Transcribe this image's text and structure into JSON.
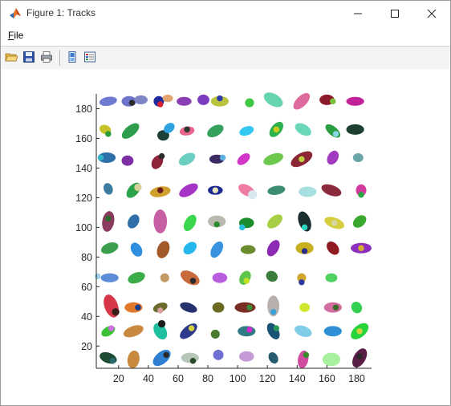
{
  "window": {
    "title": "Figure 1: Tracks",
    "icons": {
      "app": "matlab-icon",
      "minimize": "minimize-icon",
      "maximize": "maximize-icon",
      "close": "close-icon"
    }
  },
  "menu": {
    "file_label": "File"
  },
  "toolbar": {
    "items": [
      {
        "name": "open-file-button",
        "icon": "open-folder-icon"
      },
      {
        "name": "save-button",
        "icon": "save-icon"
      },
      {
        "name": "print-button",
        "icon": "print-icon"
      },
      {
        "name": "link-plot-button",
        "icon": "link-plot-icon"
      },
      {
        "name": "insert-legend-button",
        "icon": "legend-icon"
      }
    ]
  },
  "chart_data": {
    "type": "scatter",
    "title": "",
    "xlabel": "",
    "ylabel": "",
    "xlim": [
      5,
      190
    ],
    "ylim": [
      5,
      190
    ],
    "xticks": [
      20,
      40,
      60,
      80,
      100,
      120,
      140,
      160,
      180
    ],
    "yticks": [
      20,
      40,
      60,
      80,
      100,
      120,
      140,
      160,
      180
    ],
    "xtick_labels": [
      "20",
      "40",
      "60",
      "80",
      "100",
      "120",
      "140",
      "160",
      "180"
    ],
    "ytick_labels": [
      "20",
      "40",
      "60",
      "80",
      "100",
      "120",
      "140",
      "160",
      "180"
    ],
    "grid": false,
    "legend": "none",
    "note": "Each blob is a tracked object drawn as a filled ellipse",
    "tracks": [
      {
        "x": 13,
        "y": 185,
        "rx": 6,
        "ry": 3,
        "ang": 10,
        "c": "#6f7bd1"
      },
      {
        "x": 27,
        "y": 185,
        "rx": 5,
        "ry": 3.5,
        "ang": 0,
        "c": "#6b74c9"
      },
      {
        "x": 35,
        "y": 186,
        "rx": 4.5,
        "ry": 3,
        "ang": 0,
        "c": "#7f86c7"
      },
      {
        "x": 47,
        "y": 185,
        "rx": 3.5,
        "ry": 3.5,
        "ang": 0,
        "c": "#1f2b9c"
      },
      {
        "x": 53,
        "y": 187,
        "rx": 3.5,
        "ry": 2.5,
        "ang": 0,
        "c": "#e2a36e"
      },
      {
        "x": 64,
        "y": 185,
        "rx": 5,
        "ry": 3,
        "ang": 0,
        "c": "#8b3fb4"
      },
      {
        "x": 77,
        "y": 186,
        "rx": 4,
        "ry": 3.5,
        "ang": 0,
        "c": "#7c3bbe"
      },
      {
        "x": 88,
        "y": 185,
        "rx": 6,
        "ry": 3.5,
        "ang": 0,
        "c": "#b9c33e"
      },
      {
        "x": 108,
        "y": 184,
        "rx": 3,
        "ry": 3,
        "ang": 0,
        "c": "#41c742"
      },
      {
        "x": 124,
        "y": 186,
        "rx": 7,
        "ry": 4,
        "ang": -30,
        "c": "#66d3b1"
      },
      {
        "x": 143,
        "y": 185,
        "rx": 7,
        "ry": 3.5,
        "ang": 45,
        "c": "#df6a9e"
      },
      {
        "x": 160,
        "y": 186,
        "rx": 5,
        "ry": 3.5,
        "ang": 0,
        "c": "#8d1a2a"
      },
      {
        "x": 179,
        "y": 185,
        "rx": 6,
        "ry": 3,
        "ang": 0,
        "c": "#c3239a"
      },
      {
        "x": 11,
        "y": 166,
        "rx": 4,
        "ry": 3,
        "ang": -20,
        "c": "#c7c12a"
      },
      {
        "x": 28,
        "y": 165,
        "rx": 7,
        "ry": 3.5,
        "ang": 40,
        "c": "#2f9e4c"
      },
      {
        "x": 50,
        "y": 162,
        "rx": 4,
        "ry": 3.5,
        "ang": 0,
        "c": "#1c3f3a"
      },
      {
        "x": 54,
        "y": 167,
        "rx": 4,
        "ry": 3,
        "ang": 40,
        "c": "#2fa3e0"
      },
      {
        "x": 66,
        "y": 165,
        "rx": 5,
        "ry": 3,
        "ang": 10,
        "c": "#e7628d"
      },
      {
        "x": 85,
        "y": 165,
        "rx": 6,
        "ry": 3.5,
        "ang": 30,
        "c": "#36a05d"
      },
      {
        "x": 106,
        "y": 165,
        "rx": 5,
        "ry": 3,
        "ang": 20,
        "c": "#34c7f2"
      },
      {
        "x": 126,
        "y": 166,
        "rx": 6,
        "ry": 3.5,
        "ang": 50,
        "c": "#2fb24e"
      },
      {
        "x": 144,
        "y": 166,
        "rx": 6,
        "ry": 3.5,
        "ang": -30,
        "c": "#6bd6b8"
      },
      {
        "x": 164,
        "y": 165,
        "rx": 6,
        "ry": 3,
        "ang": -40,
        "c": "#2a9e43"
      },
      {
        "x": 179,
        "y": 166,
        "rx": 6,
        "ry": 3.5,
        "ang": 0,
        "c": "#1d4030"
      },
      {
        "x": 12,
        "y": 147,
        "rx": 6,
        "ry": 3.5,
        "ang": 0,
        "c": "#2d6fa8"
      },
      {
        "x": 26,
        "y": 145,
        "rx": 4,
        "ry": 3.5,
        "ang": 0,
        "c": "#7b2fa3"
      },
      {
        "x": 46,
        "y": 144,
        "rx": 5,
        "ry": 3.5,
        "ang": 60,
        "c": "#8e2438"
      },
      {
        "x": 66,
        "y": 146,
        "rx": 6,
        "ry": 3.5,
        "ang": 30,
        "c": "#6ccfc2"
      },
      {
        "x": 86,
        "y": 146,
        "rx": 5,
        "ry": 3,
        "ang": 0,
        "c": "#3c2a63"
      },
      {
        "x": 104,
        "y": 146,
        "rx": 5,
        "ry": 3,
        "ang": 40,
        "c": "#d437c7"
      },
      {
        "x": 124,
        "y": 146,
        "rx": 7,
        "ry": 3.5,
        "ang": 20,
        "c": "#6cc94e"
      },
      {
        "x": 143,
        "y": 146,
        "rx": 8,
        "ry": 4,
        "ang": 30,
        "c": "#8b2636"
      },
      {
        "x": 164,
        "y": 147,
        "rx": 5,
        "ry": 3.5,
        "ang": 60,
        "c": "#a03bbf"
      },
      {
        "x": 181,
        "y": 147,
        "rx": 3.5,
        "ry": 3,
        "ang": 0,
        "c": "#6aa5a8"
      },
      {
        "x": 13,
        "y": 126,
        "rx": 4,
        "ry": 3,
        "ang": -70,
        "c": "#3d7c9e"
      },
      {
        "x": 30,
        "y": 125,
        "rx": 6,
        "ry": 3.5,
        "ang": 50,
        "c": "#2aa34a"
      },
      {
        "x": 48,
        "y": 124,
        "rx": 7,
        "ry": 3.5,
        "ang": 10,
        "c": "#d0a02e"
      },
      {
        "x": 67,
        "y": 125,
        "rx": 7,
        "ry": 3.5,
        "ang": 30,
        "c": "#a634c7"
      },
      {
        "x": 85,
        "y": 125,
        "rx": 5,
        "ry": 3,
        "ang": 0,
        "c": "#1d2a8f"
      },
      {
        "x": 106,
        "y": 125,
        "rx": 6,
        "ry": 3.5,
        "ang": -30,
        "c": "#ee7ba0"
      },
      {
        "x": 126,
        "y": 125,
        "rx": 6,
        "ry": 3,
        "ang": 10,
        "c": "#3b8e6f"
      },
      {
        "x": 147,
        "y": 124,
        "rx": 6,
        "ry": 3.5,
        "ang": 0,
        "c": "#a8e0e0"
      },
      {
        "x": 163,
        "y": 125,
        "rx": 7,
        "ry": 3.5,
        "ang": -20,
        "c": "#8c2a3d"
      },
      {
        "x": 183,
        "y": 125,
        "rx": 3.5,
        "ry": 4,
        "ang": 0,
        "c": "#d23c9f"
      },
      {
        "x": 13,
        "y": 104,
        "rx": 7,
        "ry": 4,
        "ang": 80,
        "c": "#8a3b5e"
      },
      {
        "x": 30,
        "y": 104,
        "rx": 5,
        "ry": 3.5,
        "ang": 60,
        "c": "#2f6ea8"
      },
      {
        "x": 48,
        "y": 104,
        "rx": 8,
        "ry": 4.5,
        "ang": 90,
        "c": "#c75fa3"
      },
      {
        "x": 68,
        "y": 103,
        "rx": 6,
        "ry": 3.5,
        "ang": 60,
        "c": "#3cd64d"
      },
      {
        "x": 86,
        "y": 104,
        "rx": 6,
        "ry": 4,
        "ang": 0,
        "c": "#b9b9b0"
      },
      {
        "x": 106,
        "y": 103,
        "rx": 5,
        "ry": 3.5,
        "ang": 0,
        "c": "#1a8e2e"
      },
      {
        "x": 125,
        "y": 104,
        "rx": 6,
        "ry": 3.5,
        "ang": 40,
        "c": "#a8cf45"
      },
      {
        "x": 145,
        "y": 104,
        "rx": 7,
        "ry": 4,
        "ang": -70,
        "c": "#1d2e2e"
      },
      {
        "x": 165,
        "y": 103,
        "rx": 7,
        "ry": 3.5,
        "ang": -20,
        "c": "#d6ce3f"
      },
      {
        "x": 182,
        "y": 104,
        "rx": 5,
        "ry": 3.5,
        "ang": 40,
        "c": "#3aa82e"
      },
      {
        "x": 14,
        "y": 86,
        "rx": 6,
        "ry": 3.5,
        "ang": 20,
        "c": "#3c9f4d"
      },
      {
        "x": 32,
        "y": 85,
        "rx": 5,
        "ry": 3.5,
        "ang": -60,
        "c": "#2e8fe0"
      },
      {
        "x": 50,
        "y": 85,
        "rx": 6,
        "ry": 4,
        "ang": 70,
        "c": "#a35a2a"
      },
      {
        "x": 68,
        "y": 86,
        "rx": 5,
        "ry": 3.5,
        "ang": 40,
        "c": "#27b6ec"
      },
      {
        "x": 86,
        "y": 85,
        "rx": 6,
        "ry": 3.5,
        "ang": 60,
        "c": "#3a93e0"
      },
      {
        "x": 107,
        "y": 85,
        "rx": 5,
        "ry": 3,
        "ang": 0,
        "c": "#6b8c2e"
      },
      {
        "x": 124,
        "y": 86,
        "rx": 6,
        "ry": 3.5,
        "ang": 60,
        "c": "#8c2ab6"
      },
      {
        "x": 145,
        "y": 86,
        "rx": 6,
        "ry": 4,
        "ang": 0,
        "c": "#c6b020"
      },
      {
        "x": 164,
        "y": 86,
        "rx": 5,
        "ry": 3.5,
        "ang": -50,
        "c": "#8e1b22"
      },
      {
        "x": 183,
        "y": 86,
        "rx": 7,
        "ry": 3.5,
        "ang": 0,
        "c": "#8c30bd"
      },
      {
        "x": 14,
        "y": 66,
        "rx": 6,
        "ry": 3,
        "ang": 0,
        "c": "#5d8cd6"
      },
      {
        "x": 32,
        "y": 66,
        "rx": 6,
        "ry": 3.5,
        "ang": 20,
        "c": "#3cad48"
      },
      {
        "x": 51,
        "y": 66,
        "rx": 3,
        "ry": 3,
        "ang": 0,
        "c": "#c49a67"
      },
      {
        "x": 68,
        "y": 66,
        "rx": 7,
        "ry": 4,
        "ang": -30,
        "c": "#c86a3b"
      },
      {
        "x": 88,
        "y": 66,
        "rx": 5,
        "ry": 3.5,
        "ang": 0,
        "c": "#b65de0"
      },
      {
        "x": 105,
        "y": 66,
        "rx": 5,
        "ry": 3.5,
        "ang": 60,
        "c": "#5ec64c"
      },
      {
        "x": 123,
        "y": 67,
        "rx": 4,
        "ry": 3.5,
        "ang": -30,
        "c": "#3b7c3a"
      },
      {
        "x": 143,
        "y": 66,
        "rx": 3,
        "ry": 3,
        "ang": 0,
        "c": "#d4a531"
      },
      {
        "x": 163,
        "y": 66,
        "rx": 4,
        "ry": 3,
        "ang": 0,
        "c": "#51d161"
      },
      {
        "x": 15,
        "y": 47,
        "rx": 8,
        "ry": 4.5,
        "ang": -70,
        "c": "#d8374a"
      },
      {
        "x": 30,
        "y": 46,
        "rx": 6,
        "ry": 3.5,
        "ang": 0,
        "c": "#e2782a"
      },
      {
        "x": 48,
        "y": 46,
        "rx": 5,
        "ry": 3,
        "ang": 20,
        "c": "#6a6a2a"
      },
      {
        "x": 67,
        "y": 46,
        "rx": 6,
        "ry": 3,
        "ang": -20,
        "c": "#25326e"
      },
      {
        "x": 87,
        "y": 46,
        "rx": 4,
        "ry": 3.5,
        "ang": 0,
        "c": "#6b6a22"
      },
      {
        "x": 105,
        "y": 46,
        "rx": 7,
        "ry": 3.5,
        "ang": 0,
        "c": "#7a2d22"
      },
      {
        "x": 124,
        "y": 47,
        "rx": 7,
        "ry": 4,
        "ang": 90,
        "c": "#b8b0ac"
      },
      {
        "x": 145,
        "y": 46,
        "rx": 3.5,
        "ry": 3,
        "ang": 0,
        "c": "#d1e62f"
      },
      {
        "x": 164,
        "y": 46,
        "rx": 6,
        "ry": 3.5,
        "ang": 0,
        "c": "#d36ea0"
      },
      {
        "x": 180,
        "y": 46,
        "rx": 4,
        "ry": 3.5,
        "ang": -60,
        "c": "#35cf52"
      },
      {
        "x": 13,
        "y": 30,
        "rx": 5,
        "ry": 3,
        "ang": 30,
        "c": "#3cc236"
      },
      {
        "x": 30,
        "y": 30,
        "rx": 7,
        "ry": 3.5,
        "ang": 20,
        "c": "#c98a3f"
      },
      {
        "x": 48,
        "y": 30,
        "rx": 6,
        "ry": 4,
        "ang": -60,
        "c": "#1fbfa0"
      },
      {
        "x": 67,
        "y": 30,
        "rx": 7,
        "ry": 3.5,
        "ang": 40,
        "c": "#2d3a8c"
      },
      {
        "x": 85,
        "y": 28,
        "rx": 3,
        "ry": 3,
        "ang": 0,
        "c": "#4a7a2f"
      },
      {
        "x": 106,
        "y": 30,
        "rx": 6,
        "ry": 3.5,
        "ang": 0,
        "c": "#2f7c84"
      },
      {
        "x": 124,
        "y": 30,
        "rx": 6,
        "ry": 3.5,
        "ang": -60,
        "c": "#1a5474"
      },
      {
        "x": 144,
        "y": 30,
        "rx": 6,
        "ry": 3.5,
        "ang": -20,
        "c": "#7fcde6"
      },
      {
        "x": 164,
        "y": 30,
        "rx": 6,
        "ry": 3.5,
        "ang": 0,
        "c": "#2e8fd4"
      },
      {
        "x": 182,
        "y": 30,
        "rx": 7,
        "ry": 4,
        "ang": 40,
        "c": "#27d43c"
      },
      {
        "x": 13,
        "y": 12,
        "rx": 6,
        "ry": 3.5,
        "ang": -20,
        "c": "#1d4a33"
      },
      {
        "x": 30,
        "y": 11,
        "rx": 6,
        "ry": 4,
        "ang": 80,
        "c": "#c98a3f"
      },
      {
        "x": 49,
        "y": 12,
        "rx": 7,
        "ry": 4,
        "ang": 40,
        "c": "#2f7fd0"
      },
      {
        "x": 68,
        "y": 12,
        "rx": 6,
        "ry": 3.5,
        "ang": 0,
        "c": "#b7c6b8"
      },
      {
        "x": 87,
        "y": 14,
        "rx": 3.5,
        "ry": 3.5,
        "ang": 0,
        "c": "#6e6fd1"
      },
      {
        "x": 106,
        "y": 13,
        "rx": 5,
        "ry": 3.5,
        "ang": 0,
        "c": "#c49ad7"
      },
      {
        "x": 124,
        "y": 12,
        "rx": 4,
        "ry": 3,
        "ang": -60,
        "c": "#265a6e"
      },
      {
        "x": 144,
        "y": 11,
        "rx": 6,
        "ry": 3.5,
        "ang": 80,
        "c": "#d14ba1"
      },
      {
        "x": 163,
        "y": 11,
        "rx": 6,
        "ry": 4.5,
        "ang": 0,
        "c": "#a8f0a0"
      },
      {
        "x": 182,
        "y": 12,
        "rx": 7,
        "ry": 4,
        "ang": 60,
        "c": "#5a1d45"
      }
    ],
    "accents": [
      {
        "x": 48,
        "y": 183,
        "r": 2,
        "c": "#d62030"
      },
      {
        "x": 88,
        "y": 187,
        "r": 2,
        "c": "#2a3aa8"
      },
      {
        "x": 164,
        "y": 185,
        "r": 2,
        "c": "#7ac23a"
      },
      {
        "x": 29,
        "y": 184,
        "r": 2,
        "c": "#2b2b2b"
      },
      {
        "x": 13,
        "y": 163,
        "r": 2,
        "c": "#2a9a3a"
      },
      {
        "x": 66,
        "y": 166,
        "r": 2,
        "c": "#2b3b2b"
      },
      {
        "x": 126,
        "y": 166,
        "r": 2,
        "c": "#cccc20"
      },
      {
        "x": 166,
        "y": 163,
        "r": 2,
        "c": "#8ad6e6"
      },
      {
        "x": 8,
        "y": 147,
        "r": 2,
        "c": "#33b5c8"
      },
      {
        "x": 49,
        "y": 148,
        "r": 2,
        "c": "#2a2a2a"
      },
      {
        "x": 90,
        "y": 147,
        "r": 2,
        "c": "#5ab0e0"
      },
      {
        "x": 143,
        "y": 146,
        "r": 2,
        "c": "#c0d040"
      },
      {
        "x": 33,
        "y": 127,
        "r": 2.5,
        "c": "#d6d09a"
      },
      {
        "x": 48,
        "y": 125,
        "r": 2,
        "c": "#6b1b1b"
      },
      {
        "x": 110,
        "y": 122,
        "r": 3,
        "c": "#d8e8ee"
      },
      {
        "x": 85,
        "y": 125,
        "r": 2,
        "c": "#e8e2c0"
      },
      {
        "x": 183,
        "y": 122,
        "r": 2,
        "c": "#2aa640"
      },
      {
        "x": 13,
        "y": 106,
        "r": 2,
        "c": "#2b6b2b"
      },
      {
        "x": 86,
        "y": 102,
        "r": 2,
        "c": "#2b8a2b"
      },
      {
        "x": 103,
        "y": 100,
        "r": 2,
        "c": "#2ac0e0"
      },
      {
        "x": 145,
        "y": 100,
        "r": 2,
        "c": "#2ad6c0"
      },
      {
        "x": 165,
        "y": 103,
        "r": 2,
        "c": "#d6d6a0"
      },
      {
        "x": 145,
        "y": 84,
        "r": 2,
        "c": "#2b2b8a"
      },
      {
        "x": 183,
        "y": 86,
        "r": 2,
        "c": "#d6b030"
      },
      {
        "x": 6,
        "y": 67,
        "r": 2,
        "c": "#9fd0e8"
      },
      {
        "x": 70,
        "y": 64,
        "r": 2,
        "c": "#2b2b2b"
      },
      {
        "x": 106,
        "y": 64,
        "r": 2,
        "c": "#c0e020"
      },
      {
        "x": 143,
        "y": 63,
        "r": 2,
        "c": "#2a3a9a"
      },
      {
        "x": 18,
        "y": 43,
        "r": 2.5,
        "c": "#3a1d1d"
      },
      {
        "x": 33,
        "y": 46,
        "r": 2,
        "c": "#1a3a8a"
      },
      {
        "x": 48,
        "y": 44,
        "r": 2,
        "c": "#d8a0a0"
      },
      {
        "x": 108,
        "y": 46,
        "r": 2,
        "c": "#3a8a3a"
      },
      {
        "x": 124,
        "y": 43,
        "r": 2,
        "c": "#3aa0d8"
      },
      {
        "x": 166,
        "y": 46,
        "r": 2,
        "c": "#3a6a2a"
      },
      {
        "x": 15,
        "y": 32,
        "r": 2,
        "c": "#d070e0"
      },
      {
        "x": 49,
        "y": 35,
        "r": 2.5,
        "c": "#1d1d1d"
      },
      {
        "x": 69,
        "y": 32,
        "r": 2,
        "c": "#d6d040"
      },
      {
        "x": 108,
        "y": 31,
        "r": 2,
        "c": "#d02ad0"
      },
      {
        "x": 126,
        "y": 32,
        "r": 2,
        "c": "#2a9a5a"
      },
      {
        "x": 182,
        "y": 30,
        "r": 2,
        "c": "#d6d040"
      },
      {
        "x": 16,
        "y": 10,
        "r": 2,
        "c": "#2a6a6a"
      },
      {
        "x": 52,
        "y": 14,
        "r": 2,
        "c": "#2a2a2a"
      },
      {
        "x": 70,
        "y": 10,
        "r": 2,
        "c": "#2a4a2a"
      },
      {
        "x": 146,
        "y": 14,
        "r": 2,
        "c": "#3a8a2a"
      },
      {
        "x": 182,
        "y": 13,
        "r": 2,
        "c": "#2a2a2a"
      }
    ]
  },
  "colors": {
    "axis": "#262626",
    "tick_label": "#262626",
    "toolbar_bg": "#f4f4f4"
  }
}
